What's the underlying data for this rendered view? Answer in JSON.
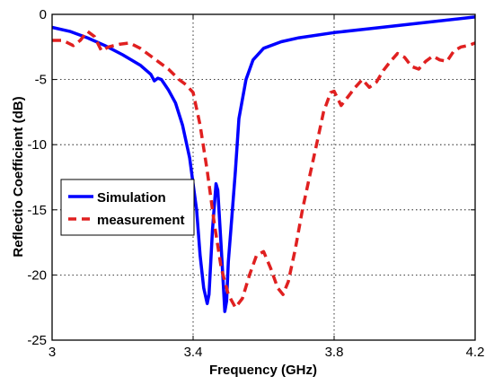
{
  "chart_data": {
    "type": "line",
    "xlabel": "Frequency (GHz)",
    "ylabel": "Reflectio Coefficient (dB)",
    "xlim": [
      3,
      4.2
    ],
    "ylim": [
      -25,
      0
    ],
    "xticks": [
      3,
      3.4,
      3.8,
      4.2
    ],
    "yticks": [
      0,
      -5,
      -10,
      -15,
      -20,
      -25
    ],
    "xtick_labels": [
      "3",
      "3.4",
      "3.8",
      "4.2"
    ],
    "ytick_labels": [
      "0",
      "-5",
      "-10",
      "-15",
      "-20",
      "-25"
    ],
    "grid": true,
    "legend_position": "left-center",
    "series": [
      {
        "name": "Simulation",
        "color": "#0000ff",
        "style": "solid",
        "points": [
          [
            3.0,
            -1.0
          ],
          [
            3.05,
            -1.3
          ],
          [
            3.1,
            -1.8
          ],
          [
            3.15,
            -2.4
          ],
          [
            3.2,
            -3.1
          ],
          [
            3.25,
            -3.9
          ],
          [
            3.28,
            -4.6
          ],
          [
            3.29,
            -5.1
          ],
          [
            3.3,
            -4.9
          ],
          [
            3.31,
            -5.0
          ],
          [
            3.33,
            -5.8
          ],
          [
            3.35,
            -6.8
          ],
          [
            3.37,
            -8.5
          ],
          [
            3.39,
            -11.0
          ],
          [
            3.41,
            -15.0
          ],
          [
            3.42,
            -18.5
          ],
          [
            3.43,
            -21.0
          ],
          [
            3.44,
            -22.2
          ],
          [
            3.445,
            -21.5
          ],
          [
            3.455,
            -16.5
          ],
          [
            3.465,
            -13.0
          ],
          [
            3.47,
            -13.5
          ],
          [
            3.48,
            -18.0
          ],
          [
            3.49,
            -22.8
          ],
          [
            3.495,
            -22.0
          ],
          [
            3.5,
            -19.0
          ],
          [
            3.51,
            -15.5
          ],
          [
            3.52,
            -12.0
          ],
          [
            3.53,
            -8.0
          ],
          [
            3.55,
            -5.0
          ],
          [
            3.57,
            -3.5
          ],
          [
            3.6,
            -2.6
          ],
          [
            3.65,
            -2.1
          ],
          [
            3.7,
            -1.8
          ],
          [
            3.8,
            -1.4
          ],
          [
            3.9,
            -1.1
          ],
          [
            4.0,
            -0.8
          ],
          [
            4.1,
            -0.5
          ],
          [
            4.2,
            -0.2
          ]
        ]
      },
      {
        "name": "measurement",
        "color": "#e02020",
        "style": "dashed",
        "points": [
          [
            3.0,
            -2.0
          ],
          [
            3.03,
            -2.0
          ],
          [
            3.06,
            -2.4
          ],
          [
            3.08,
            -2.0
          ],
          [
            3.1,
            -1.3
          ],
          [
            3.12,
            -1.7
          ],
          [
            3.14,
            -2.8
          ],
          [
            3.16,
            -2.5
          ],
          [
            3.19,
            -2.3
          ],
          [
            3.22,
            -2.2
          ],
          [
            3.25,
            -2.6
          ],
          [
            3.28,
            -3.2
          ],
          [
            3.3,
            -3.6
          ],
          [
            3.33,
            -4.2
          ],
          [
            3.36,
            -5.0
          ],
          [
            3.38,
            -5.4
          ],
          [
            3.4,
            -6.0
          ],
          [
            3.42,
            -8.5
          ],
          [
            3.44,
            -12.0
          ],
          [
            3.46,
            -16.0
          ],
          [
            3.48,
            -19.5
          ],
          [
            3.5,
            -21.5
          ],
          [
            3.52,
            -22.5
          ],
          [
            3.54,
            -21.8
          ],
          [
            3.56,
            -20.0
          ],
          [
            3.58,
            -18.5
          ],
          [
            3.6,
            -18.2
          ],
          [
            3.62,
            -19.5
          ],
          [
            3.64,
            -21.0
          ],
          [
            3.655,
            -21.5
          ],
          [
            3.67,
            -20.5
          ],
          [
            3.69,
            -18.0
          ],
          [
            3.71,
            -15.0
          ],
          [
            3.73,
            -12.5
          ],
          [
            3.75,
            -10.0
          ],
          [
            3.77,
            -7.5
          ],
          [
            3.79,
            -6.0
          ],
          [
            3.8,
            -5.9
          ],
          [
            3.82,
            -7.0
          ],
          [
            3.84,
            -6.3
          ],
          [
            3.86,
            -5.6
          ],
          [
            3.88,
            -5.0
          ],
          [
            3.9,
            -5.6
          ],
          [
            3.92,
            -5.2
          ],
          [
            3.94,
            -4.3
          ],
          [
            3.96,
            -3.6
          ],
          [
            3.98,
            -3.0
          ],
          [
            4.0,
            -3.3
          ],
          [
            4.02,
            -4.0
          ],
          [
            4.04,
            -4.2
          ],
          [
            4.06,
            -3.6
          ],
          [
            4.08,
            -3.2
          ],
          [
            4.1,
            -3.5
          ],
          [
            4.12,
            -3.6
          ],
          [
            4.14,
            -2.8
          ],
          [
            4.16,
            -2.5
          ],
          [
            4.18,
            -2.4
          ],
          [
            4.2,
            -2.2
          ]
        ]
      }
    ]
  }
}
